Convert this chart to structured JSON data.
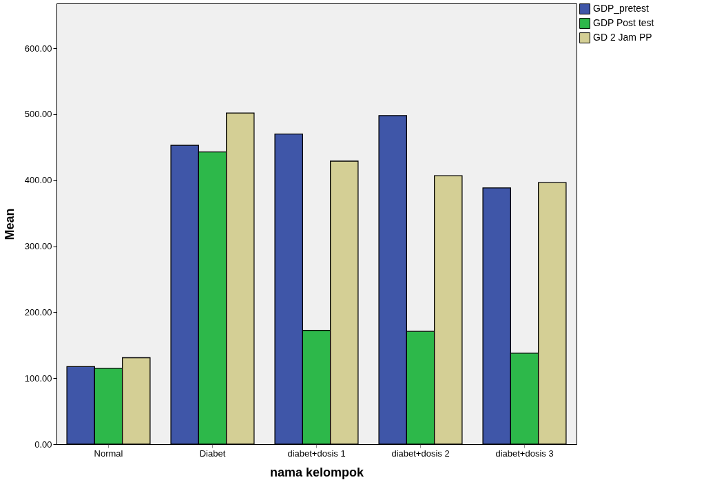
{
  "chart_data": {
    "type": "bar",
    "xlabel": "nama kelompok",
    "ylabel": "Mean",
    "categories": [
      "Normal",
      "Diabet",
      "diabet+dosis 1",
      "diabet+dosis 2",
      "diabet+dosis 3"
    ],
    "series": [
      {
        "name": "GDP_pretest",
        "color": "#3f56a8",
        "values": [
          117.5,
          453,
          470,
          498,
          388.5
        ]
      },
      {
        "name": "GDP Post test",
        "color": "#2db84a",
        "values": [
          115,
          443,
          172.5,
          171,
          138
        ]
      },
      {
        "name": "GD 2 Jam PP",
        "color": "#d4cf95",
        "values": [
          131,
          502,
          429,
          407,
          396.5
        ]
      }
    ],
    "ylim": [
      0,
      668
    ],
    "yticks": [
      {
        "value": 0,
        "label": "0.00"
      },
      {
        "value": 100,
        "label": "100.00"
      },
      {
        "value": 200,
        "label": "200.00"
      },
      {
        "value": 300,
        "label": "300.00"
      },
      {
        "value": 400,
        "label": "400.00"
      },
      {
        "value": 500,
        "label": "500.00"
      },
      {
        "value": 600,
        "label": "600.00"
      }
    ],
    "grid": false,
    "legend": "top right"
  }
}
